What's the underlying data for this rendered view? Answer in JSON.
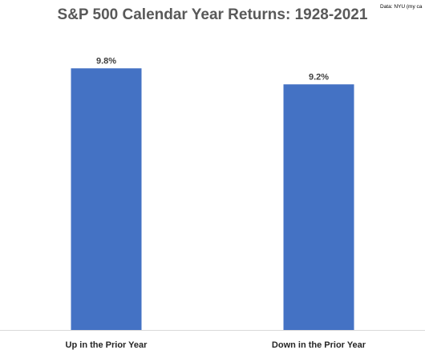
{
  "chart_data": {
    "type": "bar",
    "title": "S&P 500 Calendar Year Returns: 1928-2021",
    "source_note": "Data: NYU (my ca",
    "categories": [
      "Up in the Prior Year",
      "Down in the Prior Year"
    ],
    "values": [
      9.8,
      9.2
    ],
    "data_labels": [
      "9.8%",
      "9.2%"
    ],
    "xlabel": "",
    "ylabel": "",
    "ylim": [
      0,
      12
    ],
    "grid": false,
    "legend": "none",
    "colors": {
      "bar": "#4472C4",
      "axis": "#D9D9D9",
      "title": "#595959"
    }
  }
}
